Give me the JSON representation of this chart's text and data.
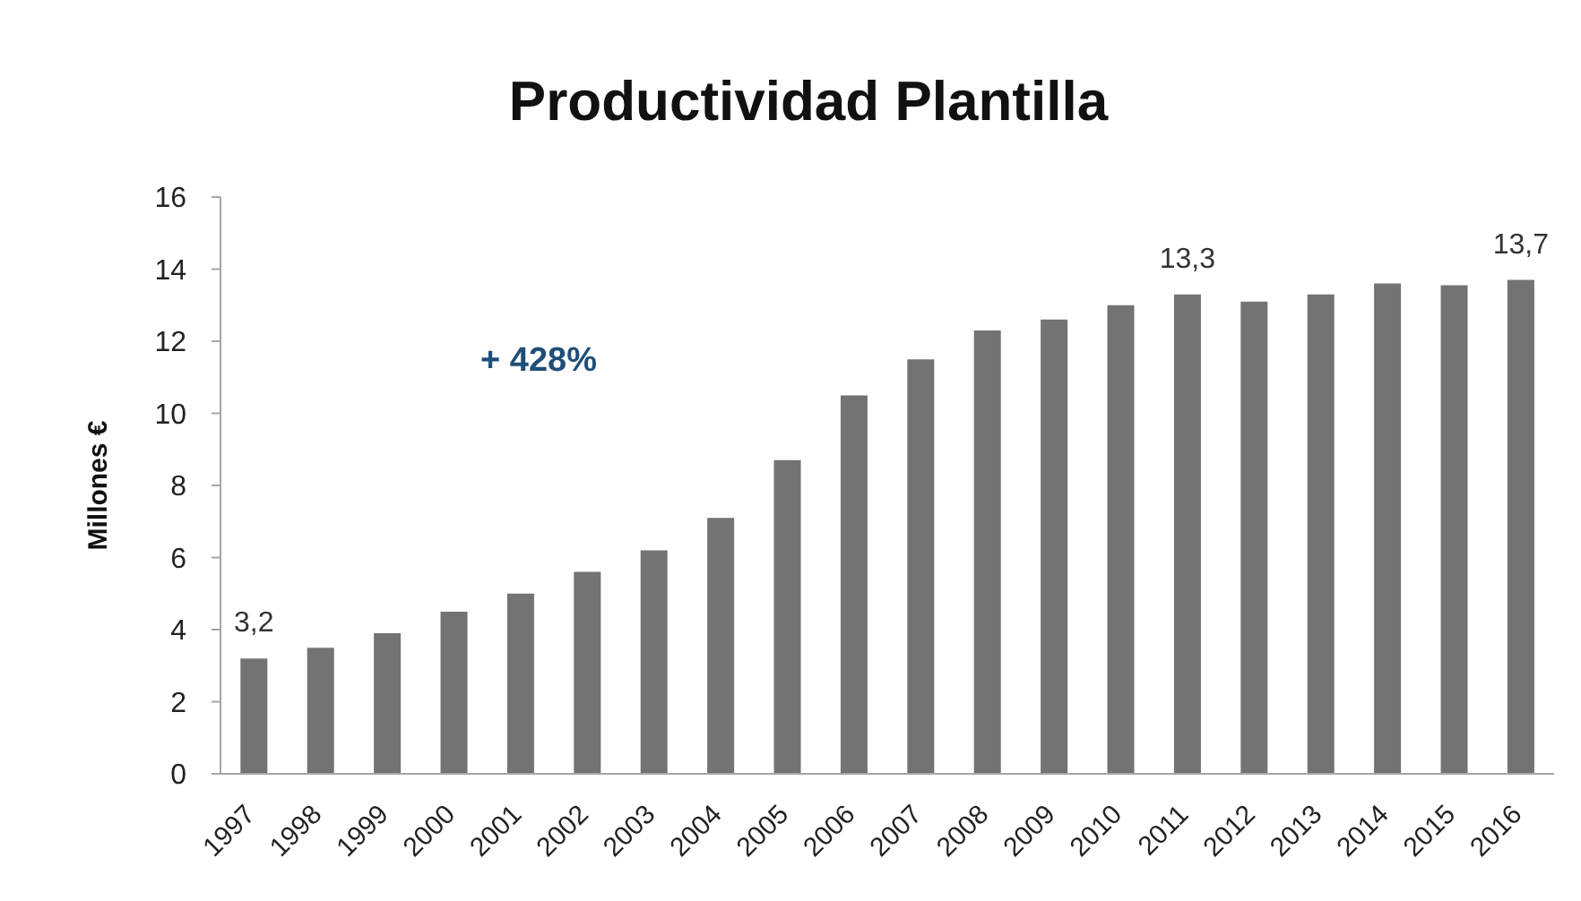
{
  "chart_data": {
    "type": "bar",
    "title": "Productividad Plantilla",
    "ylabel": "Millones €",
    "annotations": [
      "+ 428%"
    ],
    "categories": [
      "1997",
      "1998",
      "1999",
      "2000",
      "2001",
      "2002",
      "2003",
      "2004",
      "2005",
      "2006",
      "2007",
      "2008",
      "2009",
      "2010",
      "2011",
      "2012",
      "2013",
      "2014",
      "2015",
      "2016"
    ],
    "values": [
      3.2,
      3.5,
      3.9,
      4.5,
      5.0,
      5.6,
      6.2,
      7.1,
      8.7,
      10.5,
      11.5,
      12.3,
      12.6,
      13.0,
      13.3,
      13.1,
      13.3,
      13.6,
      13.55,
      13.7
    ],
    "value_labels": [
      "3,2",
      null,
      null,
      null,
      null,
      null,
      null,
      null,
      null,
      null,
      null,
      null,
      null,
      null,
      "13,3",
      null,
      null,
      null,
      null,
      "13,7"
    ],
    "color": "#737373",
    "ylim": [
      0,
      16
    ],
    "yticks": [
      0,
      2,
      4,
      6,
      8,
      10,
      12,
      14,
      16
    ]
  }
}
